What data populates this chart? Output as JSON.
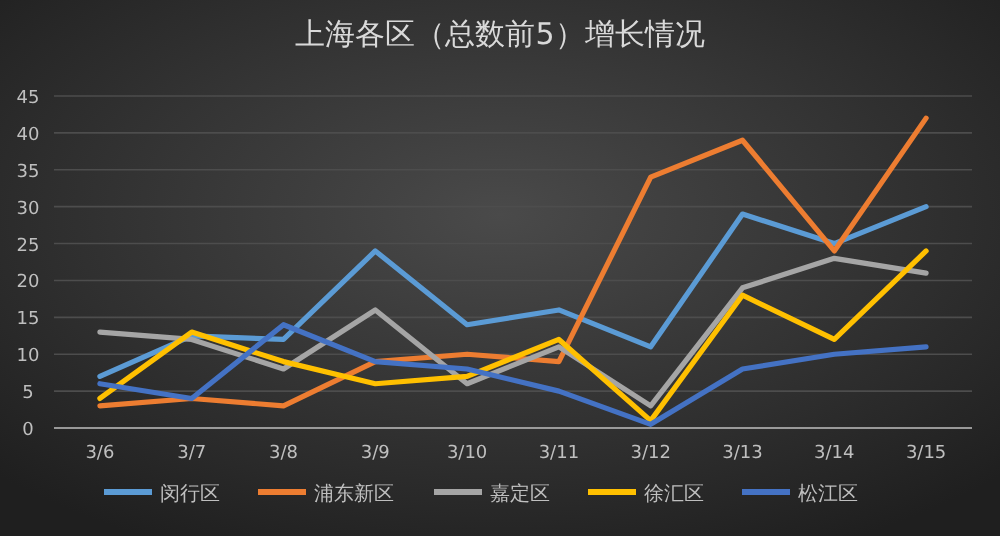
{
  "chart_data": {
    "type": "line",
    "title": "上海各区（总数前5）增长情况",
    "categories": [
      "3/6",
      "3/7",
      "3/8",
      "3/9",
      "3/10",
      "3/11",
      "3/12",
      "3/13",
      "3/14",
      "3/15"
    ],
    "series": [
      {
        "name": "闵行区",
        "color": "#5b9bd5",
        "values": [
          7,
          12.5,
          12,
          24,
          14,
          16,
          11,
          29,
          25,
          30
        ]
      },
      {
        "name": "浦东新区",
        "color": "#ed7d31",
        "values": [
          3,
          4,
          3,
          9,
          10,
          9,
          34,
          39,
          24,
          42
        ]
      },
      {
        "name": "嘉定区",
        "color": "#a5a5a5",
        "values": [
          13,
          12,
          8,
          16,
          6,
          11,
          3,
          19,
          23,
          21
        ]
      },
      {
        "name": "徐汇区",
        "color": "#ffc000",
        "values": [
          4,
          13,
          9,
          6,
          7,
          12,
          1,
          18,
          12,
          24
        ]
      },
      {
        "name": "松江区",
        "color": "#4472c4",
        "values": [
          6,
          4,
          14,
          9,
          8,
          5,
          0.5,
          8,
          10,
          11
        ]
      }
    ],
    "ylim": [
      0,
      45
    ],
    "yticks": [
      0,
      5,
      10,
      15,
      20,
      25,
      30,
      35,
      40,
      45
    ],
    "grid": "y",
    "legend": "bottom",
    "marker": "none",
    "line_style": "solid"
  }
}
